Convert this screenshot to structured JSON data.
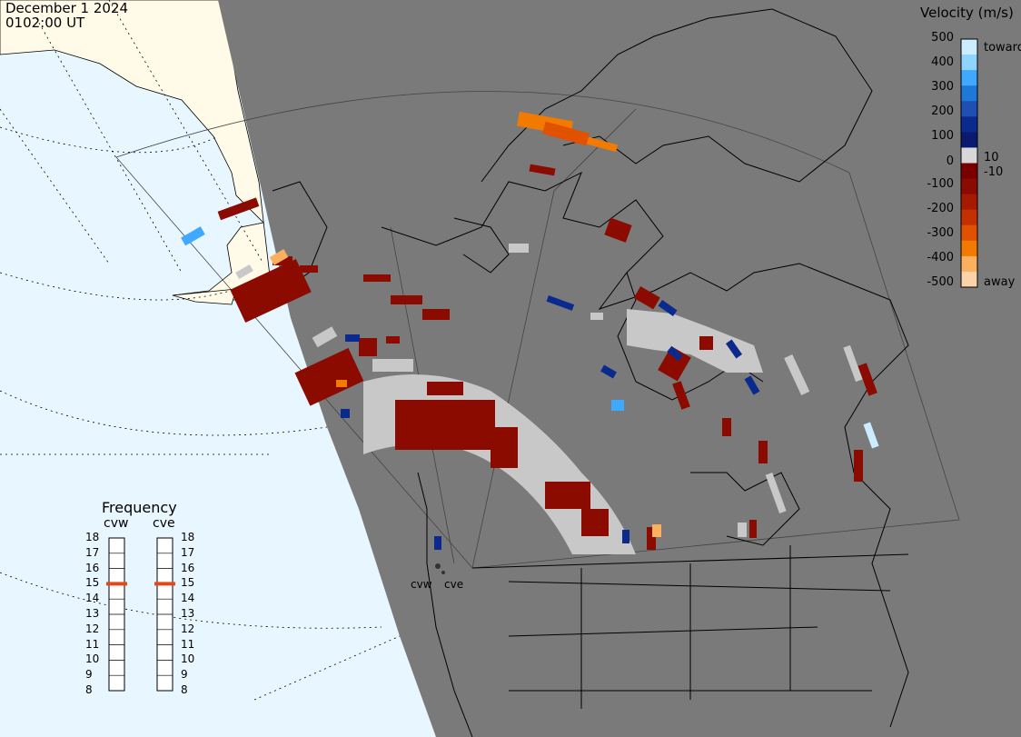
{
  "header": {
    "date": "December 1 2024",
    "time": "0102:00 UT"
  },
  "colorbar": {
    "title": "Velocity (m/s)",
    "ticks": [
      "500",
      "400",
      "300",
      "200",
      "100",
      "10",
      "0",
      "-10",
      "-100",
      "-200",
      "-300",
      "-400",
      "-500"
    ],
    "toward_label": "toward",
    "away_label": "away",
    "colors": [
      "#ccecff",
      "#8fd3ff",
      "#3fa9ff",
      "#1e78d8",
      "#1f4fb3",
      "#0b2a8e",
      "#0a1a6e",
      "#d8d8d8",
      "#7a0000",
      "#8b0b00",
      "#a61a00",
      "#c43000",
      "#e05200",
      "#f27a00",
      "#fbb060",
      "#fcd3a8"
    ]
  },
  "frequency": {
    "title": "Frequency",
    "radars": [
      "cvw",
      "cve"
    ],
    "scale": [
      "18",
      "17",
      "16",
      "15",
      "14",
      "13",
      "12",
      "11",
      "10",
      "9",
      "8"
    ],
    "current": {
      "cvw": 15,
      "cve": 15
    },
    "marker_color": "#e04a1a"
  },
  "sites": [
    "cvw",
    "cve"
  ],
  "colors": {
    "ocean": "#e8f6ff",
    "land": "#fffbe8",
    "night": "#7a7a7a",
    "ground_scatter": "#c8c8c8"
  }
}
